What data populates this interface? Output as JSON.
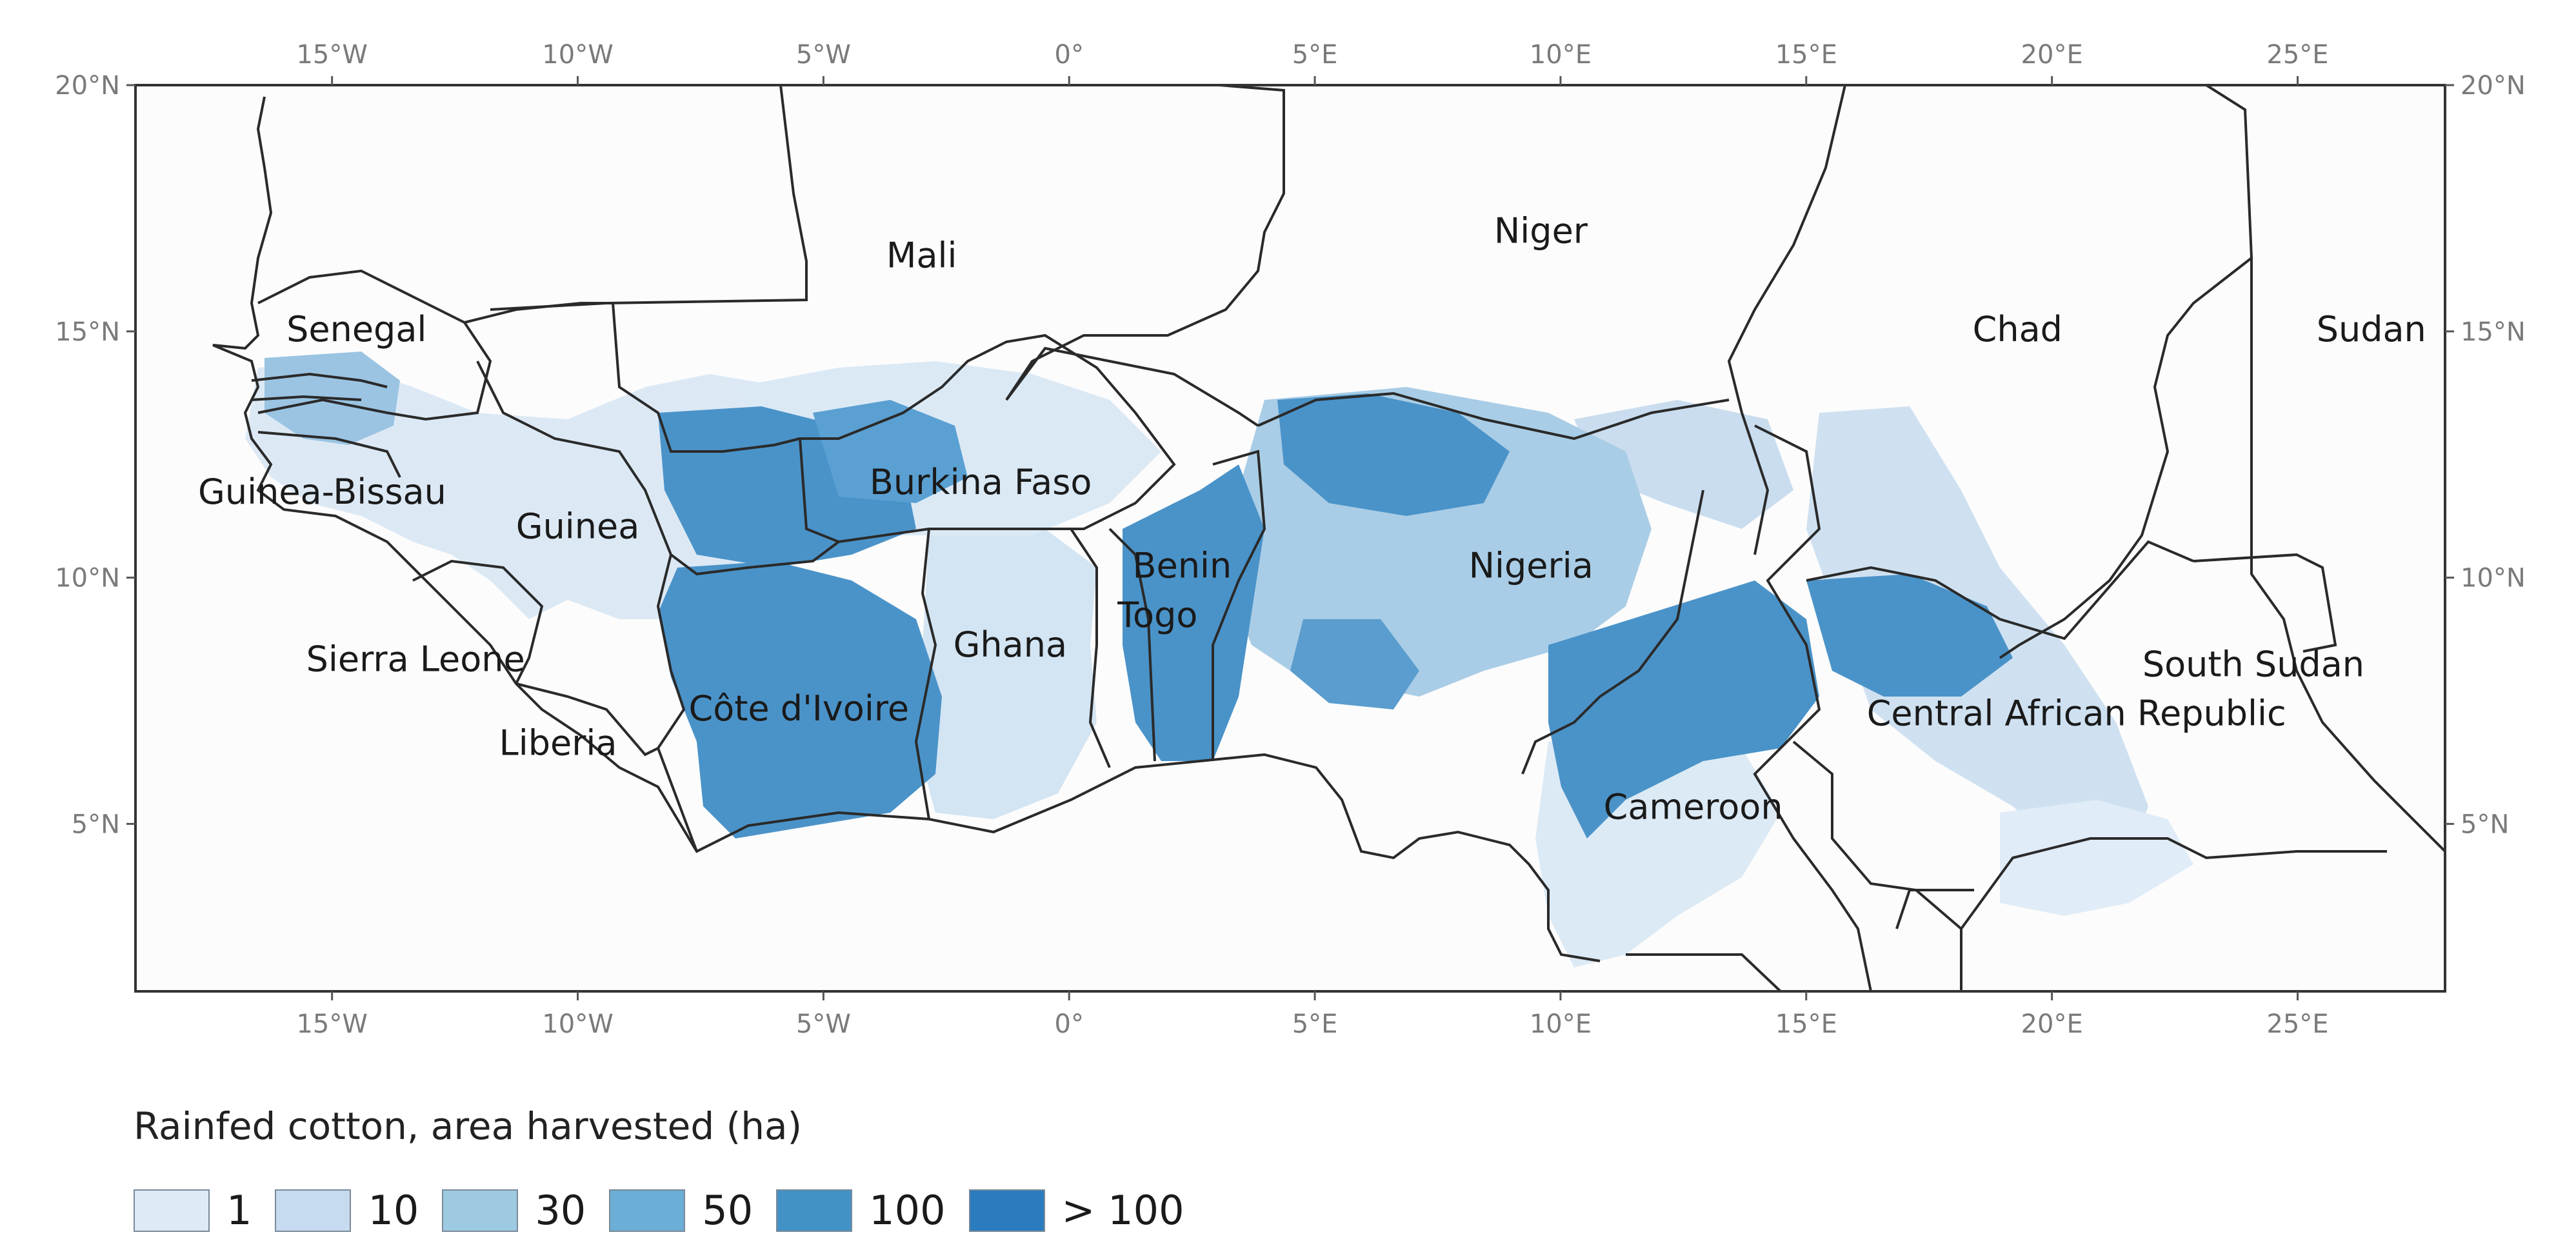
{
  "map": {
    "lon_range": [
      -19,
      28
    ],
    "lat_range": [
      1.6,
      20
    ],
    "x_ticks": [
      "15°W",
      "10°W",
      "5°W",
      "0°",
      "5°E",
      "10°E",
      "15°E",
      "20°E",
      "25°E"
    ],
    "x_tick_values": [
      -15,
      -10,
      -5,
      0,
      5,
      10,
      15,
      20,
      25
    ],
    "y_ticks": [
      "20°N",
      "15°N",
      "10°N",
      "5°N"
    ],
    "y_tick_values": [
      20,
      15,
      10,
      5
    ],
    "countries": [
      {
        "name": "Mali",
        "lon": -3.0,
        "lat": 16.3
      },
      {
        "name": "Niger",
        "lon": 9.6,
        "lat": 16.8
      },
      {
        "name": "Chad",
        "lon": 19.3,
        "lat": 14.8
      },
      {
        "name": "Sudan",
        "lon": 26.5,
        "lat": 14.8
      },
      {
        "name": "Senegal",
        "lon": -14.5,
        "lat": 14.8
      },
      {
        "name": "Guinea-Bissau",
        "lon": -15.2,
        "lat": 11.5
      },
      {
        "name": "Guinea",
        "lon": -10.0,
        "lat": 10.8
      },
      {
        "name": "Burkina Faso",
        "lon": -1.8,
        "lat": 11.7
      },
      {
        "name": "Benin",
        "lon": 2.3,
        "lat": 10.0
      },
      {
        "name": "Togo",
        "lon": 1.8,
        "lat": 9.0
      },
      {
        "name": "Nigeria",
        "lon": 9.4,
        "lat": 10.0
      },
      {
        "name": "Ghana",
        "lon": -1.2,
        "lat": 8.4
      },
      {
        "name": "Sierra Leone",
        "lon": -13.3,
        "lat": 8.1
      },
      {
        "name": "Côte d'Ivoire",
        "lon": -5.5,
        "lat": 7.1
      },
      {
        "name": "Liberia",
        "lon": -10.4,
        "lat": 6.4
      },
      {
        "name": "Central African Republic",
        "lon": 20.5,
        "lat": 7.0
      },
      {
        "name": "South Sudan",
        "lon": 24.1,
        "lat": 8.0
      },
      {
        "name": "Cameroon",
        "lon": 12.7,
        "lat": 5.1
      }
    ]
  },
  "legend": {
    "title": "Rainfed cotton, area harvested (ha)",
    "items": [
      {
        "label": "1",
        "color": "#deebf7"
      },
      {
        "label": "10",
        "color": "#c6dbef"
      },
      {
        "label": "30",
        "color": "#9ecae1"
      },
      {
        "label": "50",
        "color": "#6baed6"
      },
      {
        "label": "100",
        "color": "#4292c6"
      },
      {
        "label": "> 100",
        "color": "#2b7bbf"
      }
    ]
  }
}
